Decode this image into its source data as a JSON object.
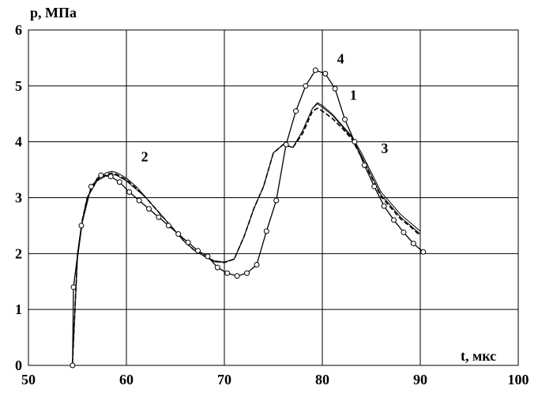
{
  "chart_data": {
    "type": "line",
    "title": "",
    "xlabel": "t, мкс",
    "ylabel": "р, МПа",
    "xlim": [
      50,
      100
    ],
    "ylim": [
      0,
      6
    ],
    "xticks": [
      "50",
      "60",
      "70",
      "80",
      "90",
      "100"
    ],
    "yticks": [
      "0",
      "1",
      "2",
      "3",
      "4",
      "5",
      "6"
    ],
    "grid": true,
    "series": [
      {
        "name": "1",
        "style": "thin",
        "x": [
          54.5,
          55,
          55.5,
          56,
          57,
          58,
          58.5,
          59,
          60,
          61,
          62,
          63,
          64,
          65,
          66,
          67,
          68,
          69,
          70,
          71,
          72,
          73,
          74,
          75,
          76,
          77,
          78,
          79,
          79.5,
          80,
          81,
          82,
          83,
          84,
          85,
          86,
          87,
          88,
          89,
          90
        ],
        "y": [
          0.05,
          2.0,
          2.6,
          3.0,
          3.3,
          3.4,
          3.42,
          3.4,
          3.3,
          3.15,
          3.0,
          2.8,
          2.6,
          2.4,
          2.2,
          2.05,
          1.95,
          1.85,
          1.85,
          1.9,
          2.3,
          2.8,
          3.2,
          3.8,
          3.95,
          3.9,
          4.2,
          4.6,
          4.7,
          4.65,
          4.5,
          4.3,
          4.1,
          3.8,
          3.45,
          3.1,
          2.9,
          2.7,
          2.55,
          2.4
        ]
      },
      {
        "name": "2",
        "style": "thin",
        "x": [
          54.5,
          55,
          55.5,
          56,
          57,
          58,
          58.5,
          59,
          60,
          61,
          62,
          63,
          64,
          65,
          66,
          67,
          68,
          69,
          70,
          71,
          72,
          73,
          74,
          75,
          76,
          77,
          78,
          79,
          79.5,
          80,
          81,
          82,
          83,
          84,
          85,
          86,
          87,
          88,
          89,
          90
        ],
        "y": [
          0.05,
          1.9,
          2.55,
          3.0,
          3.35,
          3.45,
          3.47,
          3.45,
          3.35,
          3.2,
          3.0,
          2.8,
          2.6,
          2.4,
          2.2,
          2.05,
          1.95,
          1.87,
          1.85,
          1.9,
          2.3,
          2.8,
          3.2,
          3.8,
          3.95,
          3.9,
          4.2,
          4.6,
          4.68,
          4.62,
          4.48,
          4.28,
          4.08,
          3.75,
          3.4,
          3.05,
          2.85,
          2.65,
          2.5,
          2.35
        ]
      },
      {
        "name": "3",
        "style": "dashed",
        "x": [
          54.5,
          55,
          55.5,
          56,
          57,
          58,
          58.5,
          59,
          60,
          61,
          62,
          63,
          64,
          65,
          66,
          67,
          68,
          69,
          70,
          71,
          72,
          73,
          74,
          75,
          76,
          77,
          78,
          79,
          79.5,
          80,
          81,
          82,
          83,
          84,
          85,
          86,
          87,
          88,
          89,
          90
        ],
        "y": [
          0.05,
          1.95,
          2.6,
          3.0,
          3.32,
          3.42,
          3.44,
          3.42,
          3.32,
          3.17,
          3.0,
          2.8,
          2.6,
          2.4,
          2.2,
          2.05,
          1.95,
          1.86,
          1.84,
          1.9,
          2.3,
          2.8,
          3.2,
          3.8,
          3.95,
          3.9,
          4.15,
          4.55,
          4.6,
          4.55,
          4.42,
          4.25,
          4.05,
          3.72,
          3.38,
          3.02,
          2.82,
          2.62,
          2.48,
          2.32
        ]
      },
      {
        "name": "4",
        "style": "markers",
        "x": [
          54.5,
          54.6,
          55.4,
          56.4,
          57.4,
          58.4,
          59.3,
          60.3,
          61.3,
          62.3,
          63.3,
          64.3,
          65.3,
          66.3,
          67.3,
          68.3,
          69.3,
          70.3,
          71.3,
          72.3,
          73.3,
          74.3,
          75.3,
          76.3,
          77.3,
          78.3,
          79.3,
          80.3,
          81.3,
          82.3,
          83.3,
          84.3,
          85.3,
          86.3,
          87.3,
          88.3,
          89.3,
          90.3
        ],
        "y": [
          0.0,
          1.4,
          2.5,
          3.2,
          3.4,
          3.38,
          3.28,
          3.1,
          2.95,
          2.8,
          2.65,
          2.5,
          2.35,
          2.2,
          2.05,
          1.95,
          1.75,
          1.65,
          1.6,
          1.65,
          1.8,
          2.4,
          2.95,
          3.95,
          4.55,
          5.0,
          5.28,
          5.22,
          4.95,
          4.4,
          4.0,
          3.58,
          3.2,
          2.85,
          2.6,
          2.38,
          2.18,
          2.03
        ]
      }
    ],
    "annotations": [
      {
        "text": "1",
        "x": 82.8,
        "y": 4.75
      },
      {
        "text": "2",
        "x": 61.5,
        "y": 3.65
      },
      {
        "text": "3",
        "x": 86.0,
        "y": 3.8
      },
      {
        "text": "4",
        "x": 81.5,
        "y": 5.4
      }
    ]
  }
}
